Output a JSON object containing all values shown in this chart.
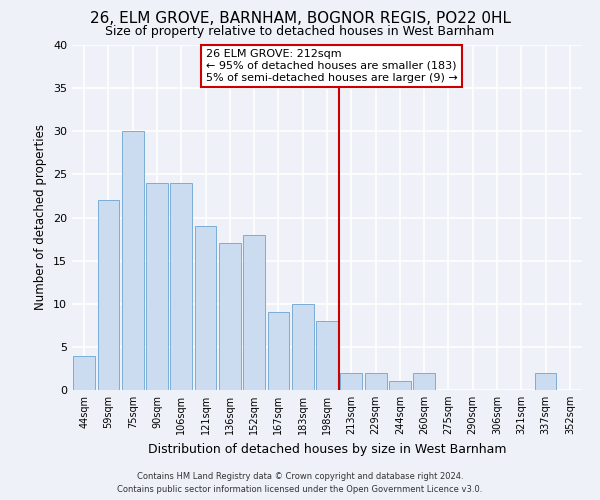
{
  "title": "26, ELM GROVE, BARNHAM, BOGNOR REGIS, PO22 0HL",
  "subtitle": "Size of property relative to detached houses in West Barnham",
  "xlabel": "Distribution of detached houses by size in West Barnham",
  "ylabel": "Number of detached properties",
  "categories": [
    "44sqm",
    "59sqm",
    "75sqm",
    "90sqm",
    "106sqm",
    "121sqm",
    "136sqm",
    "152sqm",
    "167sqm",
    "183sqm",
    "198sqm",
    "213sqm",
    "229sqm",
    "244sqm",
    "260sqm",
    "275sqm",
    "290sqm",
    "306sqm",
    "321sqm",
    "337sqm",
    "352sqm"
  ],
  "values": [
    4,
    22,
    30,
    24,
    24,
    19,
    17,
    18,
    9,
    10,
    8,
    2,
    2,
    1,
    2,
    0,
    0,
    0,
    0,
    2,
    0
  ],
  "bar_color": "#ccdcf0",
  "bar_edge_color": "#7aaed6",
  "vline_x_index": 11,
  "vline_color": "#cc0000",
  "annotation_line1": "26 ELM GROVE: 212sqm",
  "annotation_line2": "← 95% of detached houses are smaller (183)",
  "annotation_line3": "5% of semi-detached houses are larger (9) →",
  "annotation_box_color": "#ffffff",
  "annotation_box_edge": "#cc0000",
  "ylim": [
    0,
    40
  ],
  "yticks": [
    0,
    5,
    10,
    15,
    20,
    25,
    30,
    35,
    40
  ],
  "footer1": "Contains HM Land Registry data © Crown copyright and database right 2024.",
  "footer2": "Contains public sector information licensed under the Open Government Licence v3.0.",
  "bg_color": "#eef2f8",
  "grid_color": "#ffffff",
  "title_fontsize": 11,
  "subtitle_fontsize": 9,
  "xlabel_fontsize": 9,
  "ylabel_fontsize": 8.5
}
